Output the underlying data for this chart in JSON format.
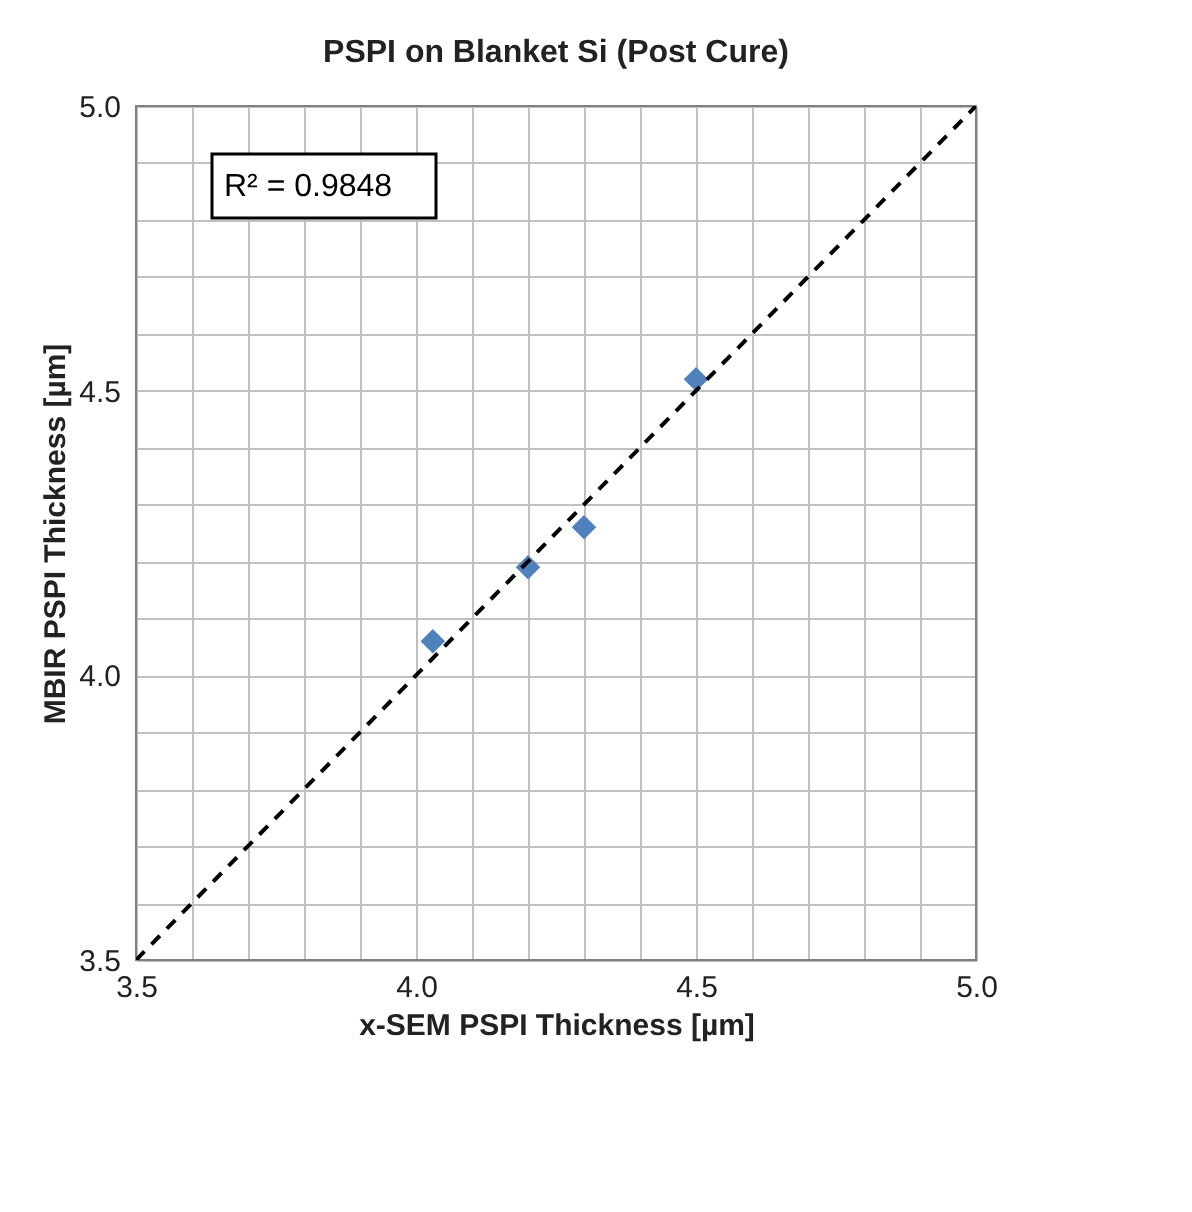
{
  "chart_data": {
    "type": "scatter",
    "title": "PSPI on Blanket Si (Post Cure)",
    "xlabel": "x-SEM PSPI Thickness [µm]",
    "ylabel": "MBIR PSPI Thickness [µm]",
    "annotations": [
      "R² = 0.9848"
    ],
    "series": [
      {
        "x": [
          4.03,
          4.2,
          4.3,
          4.5
        ],
        "values": [
          4.06,
          4.19,
          4.26,
          4.52
        ],
        "color": "#4f81bd",
        "marker": "diamond"
      },
      {
        "type": "line",
        "x": [
          3.5,
          5.0
        ],
        "values": [
          3.5,
          5.0
        ],
        "color": "#000000",
        "line_style": "dashed",
        "marker": "none"
      }
    ],
    "xlim": [
      3.5,
      5.0
    ],
    "ylim": [
      3.5,
      5.0
    ],
    "xticks": [
      3.5,
      {
        "value": 3.6,
        "label": null
      },
      {
        "value": 3.7,
        "label": null
      },
      {
        "value": 3.8,
        "label": null
      },
      {
        "value": 3.9,
        "label": null
      },
      {
        "value": 4,
        "label": "4.0"
      },
      {
        "value": 4.1,
        "label": null
      },
      {
        "value": 4.2,
        "label": null
      },
      {
        "value": 4.3,
        "label": null
      },
      {
        "value": 4.4,
        "label": null
      },
      4.5,
      {
        "value": 4.6,
        "label": null
      },
      {
        "value": 4.7,
        "label": null
      },
      {
        "value": 4.8,
        "label": null
      },
      {
        "value": 4.9,
        "label": null
      },
      {
        "value": 5,
        "label": "5.0"
      }
    ],
    "yticks": [
      3.5,
      {
        "value": 3.6,
        "label": null
      },
      {
        "value": 3.7,
        "label": null
      },
      {
        "value": 3.8,
        "label": null
      },
      {
        "value": 3.9,
        "label": null
      },
      {
        "value": 4,
        "label": "4.0"
      },
      {
        "value": 4.1,
        "label": null
      },
      {
        "value": 4.2,
        "label": null
      },
      {
        "value": 4.3,
        "label": null
      },
      {
        "value": 4.4,
        "label": null
      },
      4.5,
      {
        "value": 4.6,
        "label": null
      },
      {
        "value": 4.7,
        "label": null
      },
      {
        "value": 4.8,
        "label": null
      },
      {
        "value": 4.9,
        "label": null
      },
      {
        "value": 5,
        "label": "5.0"
      }
    ],
    "grid": true,
    "legend": false
  }
}
